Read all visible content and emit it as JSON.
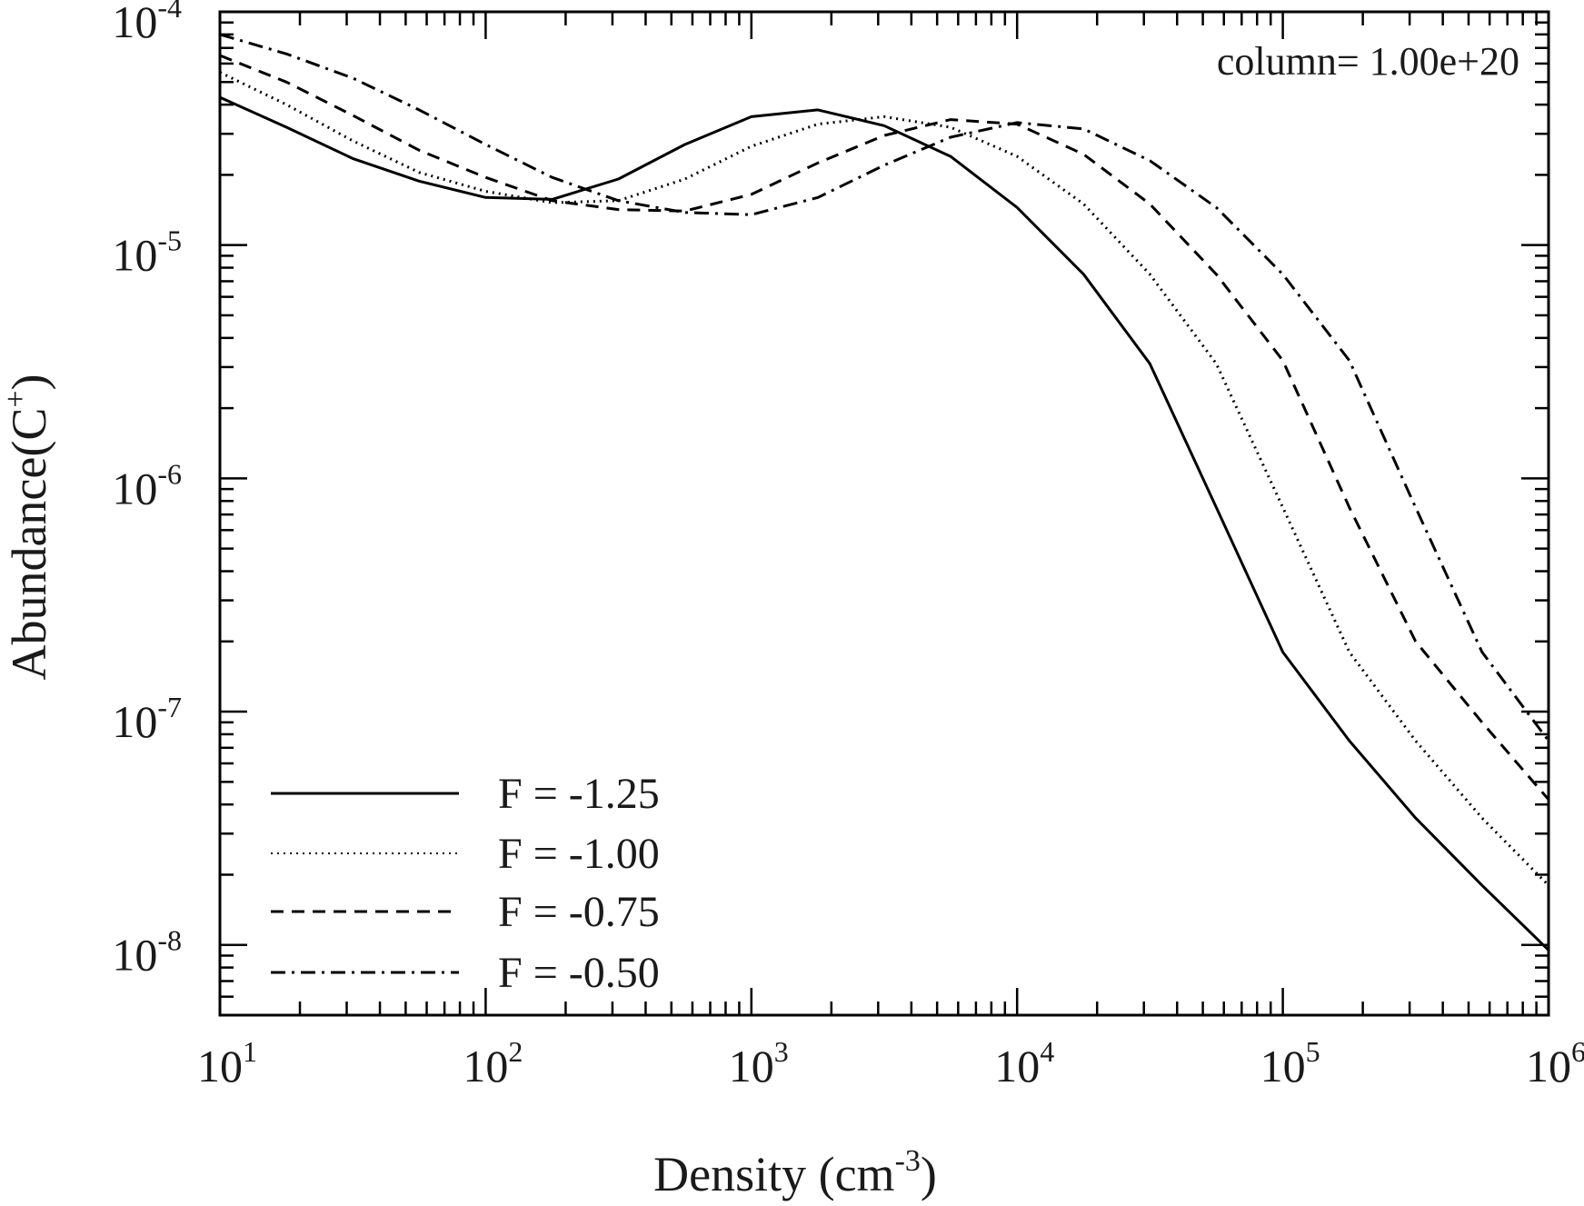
{
  "chart_data": {
    "type": "line",
    "title": "",
    "annotation": "column= 1.00e+20",
    "xlabel": {
      "text": "Density (cm",
      "sup": "-3",
      "end": ")"
    },
    "ylabel": {
      "text": "Abundance(C",
      "sup": "+",
      "end": ")"
    },
    "x_scale": "log",
    "y_scale": "log",
    "xlim": [
      10,
      1000000
    ],
    "ylim": [
      5e-09,
      0.0001
    ],
    "x_ticks": [
      {
        "value": 10,
        "base": "10",
        "exp": "1"
      },
      {
        "value": 100,
        "base": "10",
        "exp": "2"
      },
      {
        "value": 1000,
        "base": "10",
        "exp": "3"
      },
      {
        "value": 10000,
        "base": "10",
        "exp": "4"
      },
      {
        "value": 100000,
        "base": "10",
        "exp": "5"
      },
      {
        "value": 1000000,
        "base": "10",
        "exp": "6"
      }
    ],
    "y_ticks": [
      {
        "value": 1e-08,
        "base": "10",
        "exp": "-8"
      },
      {
        "value": 1e-07,
        "base": "10",
        "exp": "-7"
      },
      {
        "value": 1e-06,
        "base": "10",
        "exp": "-6"
      },
      {
        "value": 1e-05,
        "base": "10",
        "exp": "-5"
      },
      {
        "value": 0.0001,
        "base": "10",
        "exp": "-4"
      }
    ],
    "legend_position": "bottom-left",
    "series": [
      {
        "name": "F = -1.25",
        "style": "solid",
        "x": [
          10,
          17.8,
          31.6,
          56.2,
          100,
          178,
          316,
          562,
          1000,
          1780,
          3160,
          5620,
          10000,
          17800,
          31600,
          56200,
          100000,
          178000,
          316000,
          562000,
          1000000
        ],
        "y": [
          4.3e-05,
          3.2e-05,
          2.35e-05,
          1.88e-05,
          1.6e-05,
          1.57e-05,
          1.92e-05,
          2.7e-05,
          3.55e-05,
          3.8e-05,
          3.25e-05,
          2.4e-05,
          1.45e-05,
          7.5e-06,
          3.1e-06,
          7.5e-07,
          1.8e-07,
          7.5e-08,
          3.5e-08,
          1.8e-08,
          9.5e-09
        ]
      },
      {
        "name": "F = -1.00",
        "style": "dotted",
        "x": [
          10,
          17.8,
          31.6,
          56.2,
          100,
          178,
          316,
          562,
          1000,
          1780,
          3160,
          5620,
          10000,
          17800,
          31600,
          56200,
          100000,
          178000,
          316000,
          562000,
          1000000
        ],
        "y": [
          5.5e-05,
          4e-05,
          2.8e-05,
          2.05e-05,
          1.7e-05,
          1.52e-05,
          1.55e-05,
          1.92e-05,
          2.65e-05,
          3.3e-05,
          3.55e-05,
          3.2e-05,
          2.4e-05,
          1.5e-05,
          7.5e-06,
          3.1e-06,
          7.5e-07,
          1.8e-07,
          7.5e-08,
          3.5e-08,
          1.8e-08
        ]
      },
      {
        "name": "F = -0.75",
        "style": "dashed",
        "x": [
          10,
          17.8,
          31.6,
          56.2,
          100,
          178,
          316,
          562,
          1000,
          1780,
          3160,
          5620,
          10000,
          17800,
          31600,
          56200,
          100000,
          178000,
          316000,
          562000,
          1000000
        ],
        "y": [
          6.5e-05,
          5e-05,
          3.6e-05,
          2.55e-05,
          1.95e-05,
          1.55e-05,
          1.42e-05,
          1.4e-05,
          1.65e-05,
          2.25e-05,
          2.95e-05,
          3.45e-05,
          3.3e-05,
          2.45e-05,
          1.5e-05,
          7.5e-06,
          3.2e-06,
          7.5e-07,
          2e-07,
          9e-08,
          4.2e-08
        ]
      },
      {
        "name": "F = -0.50",
        "style": "dashdot",
        "x": [
          10,
          17.8,
          31.6,
          56.2,
          100,
          178,
          316,
          562,
          1000,
          1780,
          3160,
          5620,
          10000,
          17800,
          31600,
          56200,
          100000,
          178000,
          316000,
          562000,
          1000000
        ],
        "y": [
          8e-05,
          6.6e-05,
          5.2e-05,
          3.8e-05,
          2.7e-05,
          1.95e-05,
          1.55e-05,
          1.38e-05,
          1.35e-05,
          1.6e-05,
          2.2e-05,
          2.9e-05,
          3.35e-05,
          3.15e-05,
          2.3e-05,
          1.45e-05,
          7.5e-06,
          3.2e-06,
          7.5e-07,
          1.8e-07,
          7.5e-08
        ]
      }
    ]
  }
}
